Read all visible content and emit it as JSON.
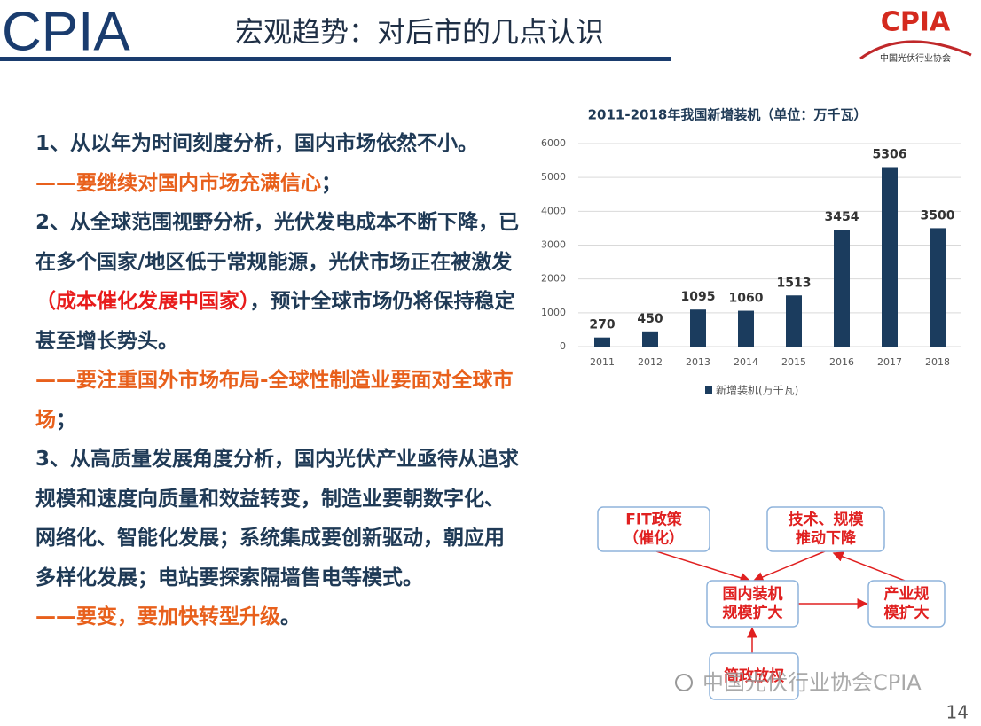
{
  "header": {
    "logo": "CPIA",
    "title": "宏观趋势：对后市的几点认识",
    "badge": "CPIA",
    "badge_caption": "中国光伏行业协会"
  },
  "text": {
    "paragraphs": [
      {
        "runs": [
          {
            "text": "1、从以年为时间刻度分析，国内市场依然不小。",
            "color": "#1f3a56"
          }
        ]
      },
      {
        "runs": [
          {
            "text": "——要继续对国内市场充满信心",
            "color": "#e8601c"
          },
          {
            "text": "；",
            "color": "#1f3a56"
          }
        ]
      },
      {
        "runs": [
          {
            "text": "2、从全球范围视野分析，光伏发电成本不断下降，已在多个国家/地区低于常规能源，光伏市场正在被激发",
            "color": "#1f3a56"
          },
          {
            "text": "（成本催化发展中国家）",
            "color": "#e81c1c"
          },
          {
            "text": "，预计全球市场仍将保持稳定甚至增长势头。",
            "color": "#1f3a56"
          }
        ]
      },
      {
        "runs": [
          {
            "text": "——要注重国外市场布局-全球性制造业要面对全球市场",
            "color": "#e8601c"
          },
          {
            "text": "；",
            "color": "#1f3a56"
          }
        ]
      },
      {
        "runs": [
          {
            "text": "3、从高质量发展角度分析，国内光伏产业亟待从追求规模和速度向质量和效益转变，制造业要朝数字化、网络化、智能化发展；系统集成要创新驱动，朝应用多样化发展；电站要探索隔墙售电等模式。",
            "color": "#1f3a56"
          }
        ]
      },
      {
        "runs": [
          {
            "text": "——要变，要加快转型升级",
            "color": "#e8601c"
          },
          {
            "text": "。",
            "color": "#1f3a56"
          }
        ]
      }
    ]
  },
  "chart_data": {
    "type": "bar",
    "title": "2011-2018年我国新增装机（单位：万千瓦）",
    "categories": [
      "2011",
      "2012",
      "2013",
      "2014",
      "2015",
      "2016",
      "2017",
      "2018"
    ],
    "series": [
      {
        "name": "新增装机(万千瓦)",
        "color": "#1b3c5e",
        "values": [
          270,
          450,
          1095,
          1060,
          1513,
          3454,
          5306,
          3500
        ]
      }
    ],
    "ylim": [
      0,
      6000
    ],
    "yticks": [
      0,
      1000,
      2000,
      3000,
      4000,
      5000,
      6000
    ],
    "grid": true,
    "legend": "bottom"
  },
  "diagram": {
    "nodes": [
      {
        "lines": [
          "FIT政策",
          "（催化）"
        ]
      },
      {
        "lines": [
          "技术、规模",
          "推动下降"
        ]
      },
      {
        "lines": [
          "国内装机",
          "规模扩大"
        ]
      },
      {
        "lines": [
          "产业规",
          "模扩大"
        ]
      },
      {
        "lines": [
          "简政放权"
        ]
      }
    ]
  },
  "footer": {
    "watermark": "中国光伏行业协会CPIA",
    "page": "14"
  }
}
